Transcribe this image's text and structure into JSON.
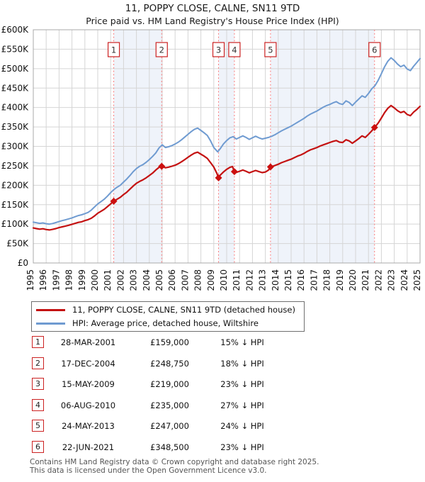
{
  "header": {
    "title": "11, POPPY CLOSE, CALNE, SN11 9TD",
    "subtitle": "Price paid vs. HM Land Registry's House Price Index (HPI)"
  },
  "chart_data": {
    "type": "line",
    "unit": "GBP thousands",
    "x_range": [
      1995,
      2025
    ],
    "x_ticks": [
      1995,
      1996,
      1997,
      1998,
      1999,
      2000,
      2001,
      2002,
      2003,
      2004,
      2005,
      2006,
      2007,
      2008,
      2009,
      2010,
      2011,
      2012,
      2013,
      2014,
      2015,
      2016,
      2017,
      2018,
      2019,
      2020,
      2021,
      2022,
      2023,
      2024,
      2025
    ],
    "ylim": [
      0,
      600
    ],
    "ytick_step": 50,
    "ytick_labels": [
      "£0",
      "£50K",
      "£100K",
      "£150K",
      "£200K",
      "£250K",
      "£300K",
      "£350K",
      "£400K",
      "£450K",
      "£500K",
      "£550K",
      "£600K"
    ],
    "grid": true,
    "bands": [
      [
        2001.24,
        2004.96
      ],
      [
        2009.37,
        2010.6
      ],
      [
        2013.4,
        2021.47
      ]
    ],
    "colors": {
      "price_line": "#c41212",
      "hpi_line": "#6f9bd1",
      "sale_marker": "#cc0f0f",
      "sale_dotted_line": "#fb7b7b",
      "band_fill": "#dfe8f5",
      "grid_line": "#d5d5d5",
      "plot_border": "#a8a8a8",
      "badge_border": "#cc2222"
    },
    "series": [
      {
        "name": "11, POPPY CLOSE, CALNE, SN11 9TD (detached house)",
        "color": "#c41212",
        "points": [
          [
            1995.0,
            90
          ],
          [
            1995.25,
            88.5
          ],
          [
            1995.5,
            87
          ],
          [
            1995.75,
            88
          ],
          [
            1996.0,
            86
          ],
          [
            1996.25,
            85
          ],
          [
            1996.5,
            86.5
          ],
          [
            1996.75,
            88.5
          ],
          [
            1997.0,
            91
          ],
          [
            1997.25,
            93
          ],
          [
            1997.5,
            95
          ],
          [
            1997.75,
            97
          ],
          [
            1998.0,
            99.5
          ],
          [
            1998.25,
            102
          ],
          [
            1998.5,
            104.5
          ],
          [
            1998.75,
            106
          ],
          [
            1999.0,
            109
          ],
          [
            1999.25,
            111.5
          ],
          [
            1999.5,
            115
          ],
          [
            1999.75,
            121
          ],
          [
            2000.0,
            128
          ],
          [
            2000.25,
            133
          ],
          [
            2000.5,
            138
          ],
          [
            2000.75,
            145
          ],
          [
            2001.0,
            152
          ],
          [
            2001.24,
            159
          ],
          [
            2001.5,
            164
          ],
          [
            2001.75,
            169
          ],
          [
            2002.0,
            176
          ],
          [
            2002.25,
            182
          ],
          [
            2002.5,
            190
          ],
          [
            2002.75,
            198
          ],
          [
            2003.0,
            205
          ],
          [
            2003.25,
            210
          ],
          [
            2003.5,
            214
          ],
          [
            2003.75,
            219
          ],
          [
            2004.0,
            225
          ],
          [
            2004.25,
            231
          ],
          [
            2004.5,
            239
          ],
          [
            2004.75,
            246
          ],
          [
            2004.96,
            248.75
          ],
          [
            2005.25,
            245
          ],
          [
            2005.5,
            246.5
          ],
          [
            2005.75,
            249
          ],
          [
            2006.0,
            251.5
          ],
          [
            2006.25,
            255.5
          ],
          [
            2006.5,
            260.5
          ],
          [
            2006.75,
            266
          ],
          [
            2007.0,
            272
          ],
          [
            2007.25,
            277.5
          ],
          [
            2007.5,
            282.5
          ],
          [
            2007.75,
            285
          ],
          [
            2008.0,
            280
          ],
          [
            2008.25,
            275
          ],
          [
            2008.5,
            269
          ],
          [
            2008.75,
            258
          ],
          [
            2009.0,
            247
          ],
          [
            2009.25,
            230
          ],
          [
            2009.37,
            219
          ],
          [
            2009.5,
            226
          ],
          [
            2009.75,
            234
          ],
          [
            2010.0,
            241
          ],
          [
            2010.25,
            246
          ],
          [
            2010.45,
            248
          ],
          [
            2010.6,
            235
          ],
          [
            2010.75,
            233
          ],
          [
            2011.0,
            236
          ],
          [
            2011.25,
            239
          ],
          [
            2011.5,
            236
          ],
          [
            2011.75,
            232
          ],
          [
            2012.0,
            235
          ],
          [
            2012.25,
            238
          ],
          [
            2012.5,
            235
          ],
          [
            2012.75,
            232.5
          ],
          [
            2013.0,
            234
          ],
          [
            2013.25,
            239
          ],
          [
            2013.4,
            247
          ],
          [
            2013.75,
            251
          ],
          [
            2014.0,
            254
          ],
          [
            2014.25,
            258
          ],
          [
            2014.5,
            261
          ],
          [
            2014.75,
            264
          ],
          [
            2015.0,
            267
          ],
          [
            2015.25,
            271
          ],
          [
            2015.5,
            275
          ],
          [
            2015.75,
            278
          ],
          [
            2016.0,
            282
          ],
          [
            2016.25,
            287
          ],
          [
            2016.5,
            291
          ],
          [
            2016.75,
            294
          ],
          [
            2017.0,
            297
          ],
          [
            2017.25,
            301
          ],
          [
            2017.5,
            304
          ],
          [
            2017.75,
            307
          ],
          [
            2018.0,
            310
          ],
          [
            2018.25,
            313
          ],
          [
            2018.5,
            315
          ],
          [
            2018.75,
            311
          ],
          [
            2019.0,
            310
          ],
          [
            2019.25,
            317
          ],
          [
            2019.5,
            314
          ],
          [
            2019.75,
            308
          ],
          [
            2020.0,
            314
          ],
          [
            2020.25,
            320
          ],
          [
            2020.5,
            327
          ],
          [
            2020.75,
            323
          ],
          [
            2021.0,
            331
          ],
          [
            2021.25,
            340
          ],
          [
            2021.47,
            348.5
          ],
          [
            2021.75,
            360
          ],
          [
            2022.0,
            373
          ],
          [
            2022.25,
            387
          ],
          [
            2022.5,
            398
          ],
          [
            2022.75,
            405
          ],
          [
            2023.0,
            399
          ],
          [
            2023.25,
            392
          ],
          [
            2023.5,
            387
          ],
          [
            2023.75,
            390
          ],
          [
            2024.0,
            382
          ],
          [
            2024.25,
            379
          ],
          [
            2024.5,
            388
          ],
          [
            2024.75,
            395
          ],
          [
            2025.0,
            403
          ]
        ]
      },
      {
        "name": "HPI: Average price, detached house, Wiltshire",
        "color": "#6f9bd1",
        "points": [
          [
            1995.0,
            105
          ],
          [
            1995.25,
            103.5
          ],
          [
            1995.5,
            102
          ],
          [
            1995.75,
            103
          ],
          [
            1996.0,
            101
          ],
          [
            1996.25,
            100
          ],
          [
            1996.5,
            101.5
          ],
          [
            1996.75,
            104
          ],
          [
            1997.0,
            106.5
          ],
          [
            1997.25,
            109
          ],
          [
            1997.5,
            111
          ],
          [
            1997.75,
            113.5
          ],
          [
            1998.0,
            116
          ],
          [
            1998.25,
            119
          ],
          [
            1998.5,
            122
          ],
          [
            1998.75,
            124
          ],
          [
            1999.0,
            127
          ],
          [
            1999.25,
            130
          ],
          [
            1999.5,
            136
          ],
          [
            1999.75,
            144
          ],
          [
            2000.0,
            152
          ],
          [
            2000.25,
            158
          ],
          [
            2000.5,
            164
          ],
          [
            2000.75,
            172
          ],
          [
            2001.0,
            181
          ],
          [
            2001.25,
            189
          ],
          [
            2001.5,
            195
          ],
          [
            2001.75,
            200
          ],
          [
            2002.0,
            208
          ],
          [
            2002.25,
            216
          ],
          [
            2002.5,
            225
          ],
          [
            2002.75,
            235
          ],
          [
            2003.0,
            243
          ],
          [
            2003.25,
            249
          ],
          [
            2003.5,
            253
          ],
          [
            2003.75,
            259
          ],
          [
            2004.0,
            266
          ],
          [
            2004.25,
            274
          ],
          [
            2004.5,
            283
          ],
          [
            2004.75,
            296
          ],
          [
            2005.0,
            304
          ],
          [
            2005.25,
            297
          ],
          [
            2005.5,
            299
          ],
          [
            2005.75,
            302
          ],
          [
            2006.0,
            306
          ],
          [
            2006.25,
            311
          ],
          [
            2006.5,
            317
          ],
          [
            2006.75,
            324
          ],
          [
            2007.0,
            331
          ],
          [
            2007.25,
            338
          ],
          [
            2007.5,
            344
          ],
          [
            2007.75,
            347
          ],
          [
            2008.0,
            341
          ],
          [
            2008.25,
            335
          ],
          [
            2008.5,
            328
          ],
          [
            2008.75,
            314
          ],
          [
            2009.0,
            297
          ],
          [
            2009.3,
            286
          ],
          [
            2009.5,
            294
          ],
          [
            2009.75,
            306
          ],
          [
            2010.0,
            315
          ],
          [
            2010.25,
            322
          ],
          [
            2010.5,
            325
          ],
          [
            2010.75,
            319
          ],
          [
            2011.0,
            323
          ],
          [
            2011.25,
            327
          ],
          [
            2011.5,
            323
          ],
          [
            2011.75,
            318
          ],
          [
            2012.0,
            322
          ],
          [
            2012.25,
            326
          ],
          [
            2012.5,
            322
          ],
          [
            2012.75,
            319
          ],
          [
            2013.0,
            321
          ],
          [
            2013.25,
            323
          ],
          [
            2013.5,
            326
          ],
          [
            2013.75,
            330
          ],
          [
            2014.0,
            335
          ],
          [
            2014.25,
            340
          ],
          [
            2014.5,
            344
          ],
          [
            2014.75,
            348
          ],
          [
            2015.0,
            352
          ],
          [
            2015.25,
            357
          ],
          [
            2015.5,
            362
          ],
          [
            2015.75,
            367
          ],
          [
            2016.0,
            372
          ],
          [
            2016.25,
            378
          ],
          [
            2016.5,
            383
          ],
          [
            2016.75,
            387
          ],
          [
            2017.0,
            391
          ],
          [
            2017.25,
            396
          ],
          [
            2017.5,
            401
          ],
          [
            2017.75,
            405
          ],
          [
            2018.0,
            408
          ],
          [
            2018.25,
            412
          ],
          [
            2018.5,
            415
          ],
          [
            2018.75,
            410
          ],
          [
            2019.0,
            408
          ],
          [
            2019.25,
            417
          ],
          [
            2019.5,
            413
          ],
          [
            2019.75,
            405
          ],
          [
            2020.0,
            414
          ],
          [
            2020.25,
            422
          ],
          [
            2020.5,
            430
          ],
          [
            2020.75,
            426
          ],
          [
            2021.0,
            436
          ],
          [
            2021.25,
            448
          ],
          [
            2021.5,
            456
          ],
          [
            2021.75,
            470
          ],
          [
            2022.0,
            487
          ],
          [
            2022.25,
            505
          ],
          [
            2022.5,
            519
          ],
          [
            2022.75,
            528
          ],
          [
            2023.0,
            521
          ],
          [
            2023.25,
            512
          ],
          [
            2023.5,
            505
          ],
          [
            2023.75,
            509
          ],
          [
            2024.0,
            499
          ],
          [
            2024.25,
            495
          ],
          [
            2024.5,
            506
          ],
          [
            2024.75,
            516
          ],
          [
            2025.0,
            526
          ]
        ]
      }
    ],
    "sales": [
      {
        "num": "1",
        "year": 2001.24,
        "value_k": 159,
        "date": "28-MAR-2001",
        "price_label": "£159,000",
        "hpi_diff": "15% ↓ HPI"
      },
      {
        "num": "2",
        "year": 2004.96,
        "value_k": 248.75,
        "date": "17-DEC-2004",
        "price_label": "£248,750",
        "hpi_diff": "18% ↓ HPI"
      },
      {
        "num": "3",
        "year": 2009.37,
        "value_k": 219,
        "date": "15-MAY-2009",
        "price_label": "£219,000",
        "hpi_diff": "23% ↓ HPI"
      },
      {
        "num": "4",
        "year": 2010.6,
        "value_k": 235,
        "date": "06-AUG-2010",
        "price_label": "£235,000",
        "hpi_diff": "27% ↓ HPI"
      },
      {
        "num": "5",
        "year": 2013.4,
        "value_k": 247,
        "date": "24-MAY-2013",
        "price_label": "£247,000",
        "hpi_diff": "24% ↓ HPI"
      },
      {
        "num": "6",
        "year": 2021.47,
        "value_k": 348.5,
        "date": "22-JUN-2021",
        "price_label": "£348,500",
        "hpi_diff": "23% ↓ HPI"
      }
    ]
  },
  "legend": {
    "items": [
      {
        "label": "11, POPPY CLOSE, CALNE, SN11 9TD (detached house)",
        "color": "#c41212"
      },
      {
        "label": "HPI: Average price, detached house, Wiltshire",
        "color": "#6f9bd1"
      }
    ]
  },
  "footer": {
    "line1": "Contains HM Land Registry data © Crown copyright and database right 2025.",
    "line2": "This data is licensed under the Open Government Licence v3.0."
  }
}
